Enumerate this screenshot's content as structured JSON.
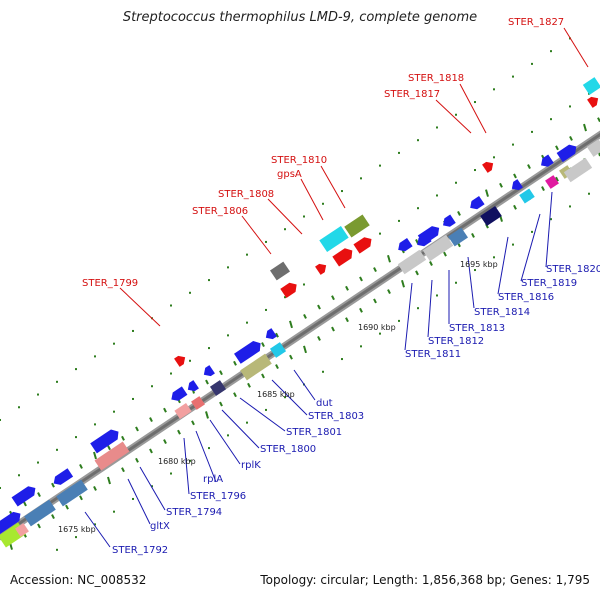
{
  "header": {
    "title": "Streptococcus thermophilus LMD-9, complete genome"
  },
  "footer": {
    "accession": "Accession: NC_008532",
    "summary": "Topology: circular; Length: 1,856,368 bp; Genes: 1,795"
  },
  "colors": {
    "backbone": "#777777",
    "tick": "#2e7d1e",
    "forward_label": "#d41010",
    "reverse_label": "#1a1ab0"
  },
  "scale_labels": [
    "1675 kbp",
    "1680 kbp",
    "1685 kbp",
    "1690 kbp",
    "1695 kbp"
  ],
  "forward_labels": [
    "STER_1799",
    "STER_1806",
    "STER_1808",
    "gpsA",
    "STER_1810",
    "STER_1817",
    "STER_1818",
    "STER_1827"
  ],
  "reverse_labels": [
    "STER_1792",
    "gltX",
    "STER_1794",
    "STER_1796",
    "rplA",
    "rplK",
    "STER_1800",
    "STER_1801",
    "STER_1803",
    "dut",
    "STER_1811",
    "STER_1812",
    "STER_1813",
    "STER_1814",
    "STER_1816",
    "STER_1819",
    "STER_1820"
  ]
}
